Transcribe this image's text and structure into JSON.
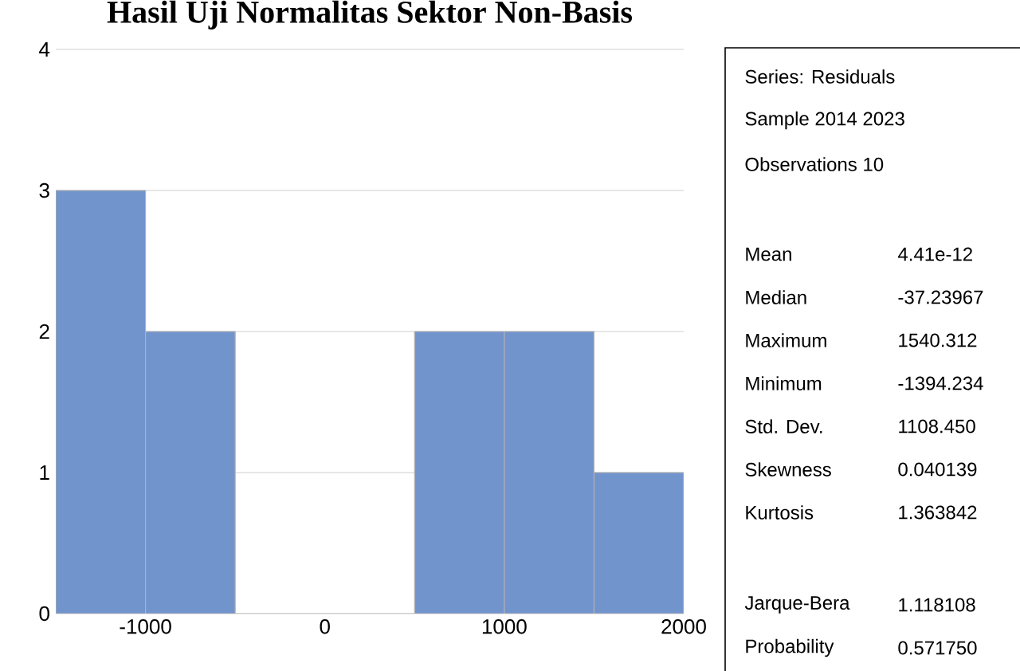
{
  "chart_data": [
    {
      "type": "histogram",
      "title": "Hasil Uji Normalitas Sektor Non-Basis",
      "bins": [
        -1500,
        -1000,
        -500,
        0,
        500,
        1000,
        1500,
        2000
      ],
      "values": [
        3,
        2,
        0,
        0,
        2,
        2,
        1
      ],
      "color": "#7294cc",
      "xlim": [
        -1500,
        2000
      ],
      "ylim": [
        0,
        4
      ],
      "xticks": [
        -1000,
        0,
        1000,
        2000
      ],
      "yticks": [
        0,
        1,
        2,
        3,
        4
      ],
      "grid": "y"
    },
    {
      "type": "other",
      "annotations": [
        "Series: Residuals",
        "Sample 2014 2023",
        "Observations 10",
        "Mean",
        "4.41e-12",
        "Median",
        "-37.23967",
        "Maximum",
        "1540.312",
        "Minimum",
        "-1394.234",
        "Std. Dev.",
        "1108.450",
        "Skewness",
        "0.040139",
        "Kurtosis",
        "1.363842",
        "Jarque-Bera",
        "1.118108",
        "Probability",
        "0.571750"
      ]
    }
  ]
}
